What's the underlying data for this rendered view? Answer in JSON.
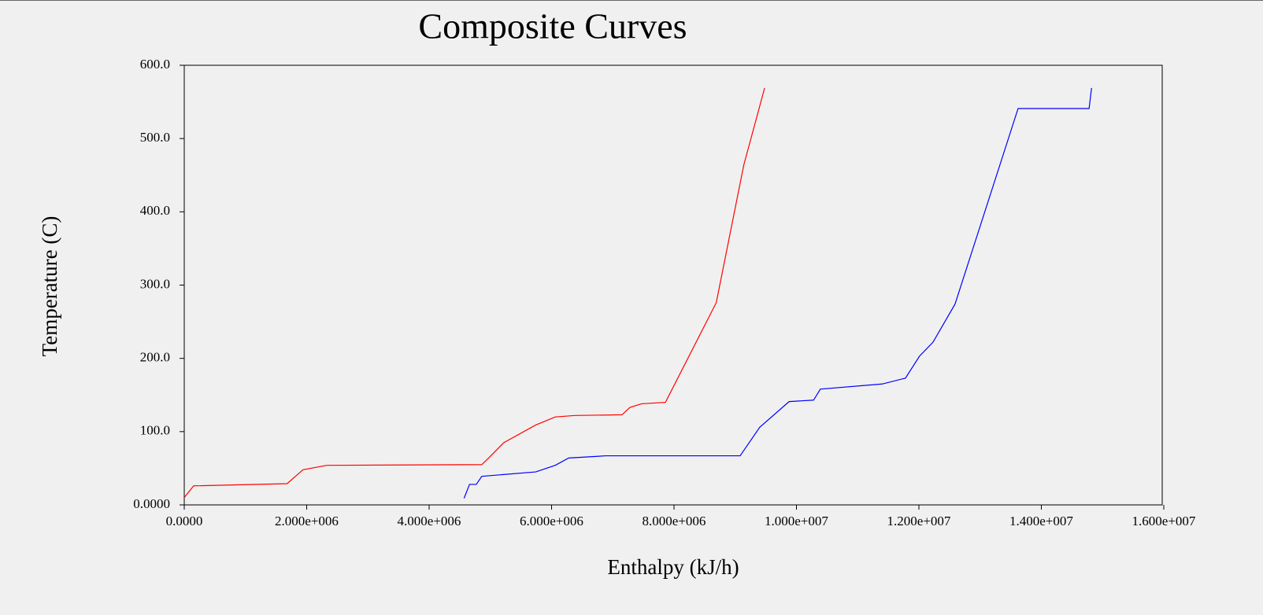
{
  "chart_data": {
    "type": "line",
    "title": "Composite Curves",
    "x_label": "Enthalpy (kJ/h)",
    "y_label": "Temperature (C)",
    "xlim": [
      0,
      16000000
    ],
    "ylim": [
      0,
      600
    ],
    "xticks": [
      {
        "value": 0,
        "label": "0.0000"
      },
      {
        "value": 2000000,
        "label": "2.000e+006"
      },
      {
        "value": 4000000,
        "label": "4.000e+006"
      },
      {
        "value": 6000000,
        "label": "6.000e+006"
      },
      {
        "value": 8000000,
        "label": "8.000e+006"
      },
      {
        "value": 10000000,
        "label": "1.000e+007"
      },
      {
        "value": 12000000,
        "label": "1.200e+007"
      },
      {
        "value": 14000000,
        "label": "1.400e+007"
      },
      {
        "value": 16000000,
        "label": "1.600e+007"
      }
    ],
    "yticks": [
      {
        "value": 0,
        "label": "0.0000"
      },
      {
        "value": 100,
        "label": "100.0"
      },
      {
        "value": 200,
        "label": "200.0"
      },
      {
        "value": 300,
        "label": "300.0"
      },
      {
        "value": 400,
        "label": "400.0"
      },
      {
        "value": 500,
        "label": "500.0"
      },
      {
        "value": 600,
        "label": "600.0"
      }
    ],
    "series": [
      {
        "color": "#ff0000",
        "x": [
          0,
          154000,
          1680000,
          1940000,
          2330000,
          4860000,
          4960000,
          5220000,
          5740000,
          6060000,
          6380000,
          7150000,
          7280000,
          7470000,
          7860000,
          8690000,
          9140000,
          9480000
        ],
        "values": [
          10,
          26,
          29,
          48,
          54,
          55,
          63,
          85,
          109,
          120,
          122,
          123,
          133,
          138,
          140,
          276,
          464,
          569
        ]
      },
      {
        "color": "#0000ff",
        "x": [
          4570000,
          4660000,
          4770000,
          4860000,
          5740000,
          6060000,
          6280000,
          6890000,
          9080000,
          9400000,
          9880000,
          10280000,
          10390000,
          11400000,
          11780000,
          12010000,
          12230000,
          12590000,
          13620000,
          14780000,
          14820000
        ],
        "values": [
          9,
          28,
          28,
          39,
          45,
          54,
          64,
          67,
          67,
          106,
          141,
          143,
          158,
          165,
          173,
          203,
          222,
          274,
          541,
          541,
          569
        ]
      }
    ]
  }
}
